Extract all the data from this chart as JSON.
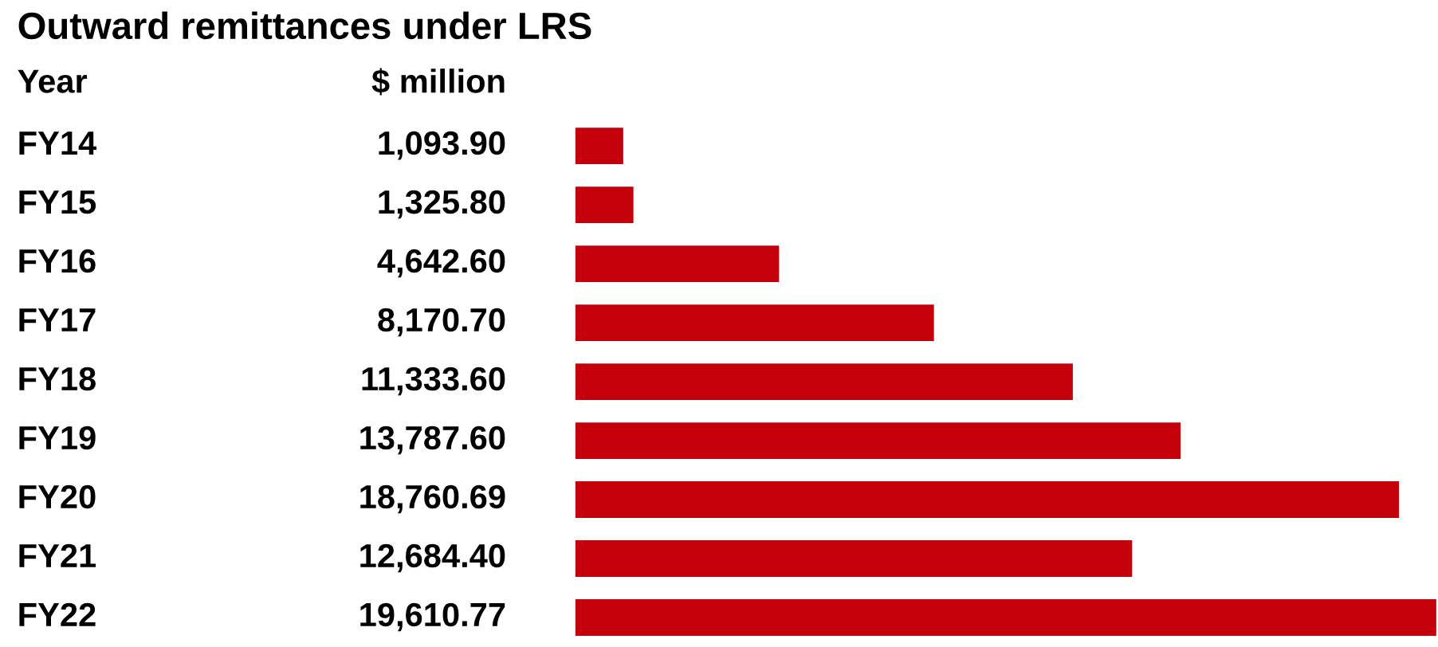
{
  "chart_data": {
    "type": "bar",
    "orientation": "horizontal",
    "title": "Outward remittances under LRS",
    "annotations": [
      "Year",
      "$ million"
    ],
    "categories": [
      "FY14",
      "FY15",
      "FY16",
      "FY17",
      "FY18",
      "FY19",
      "FY20",
      "FY21",
      "FY22"
    ],
    "values": [
      1093.9,
      1325.8,
      4642.6,
      8170.7,
      11333.6,
      13787.6,
      18760.69,
      12684.4,
      19610.77
    ],
    "value_labels": [
      "1,093.90",
      "1,325.80",
      "4,642.60",
      "8,170.70",
      "11,333.60",
      "13,787.60",
      "18,760.69",
      "12,684.40",
      "19,610.77"
    ],
    "color": "#c4000a",
    "xlim": [
      0,
      19650
    ]
  }
}
